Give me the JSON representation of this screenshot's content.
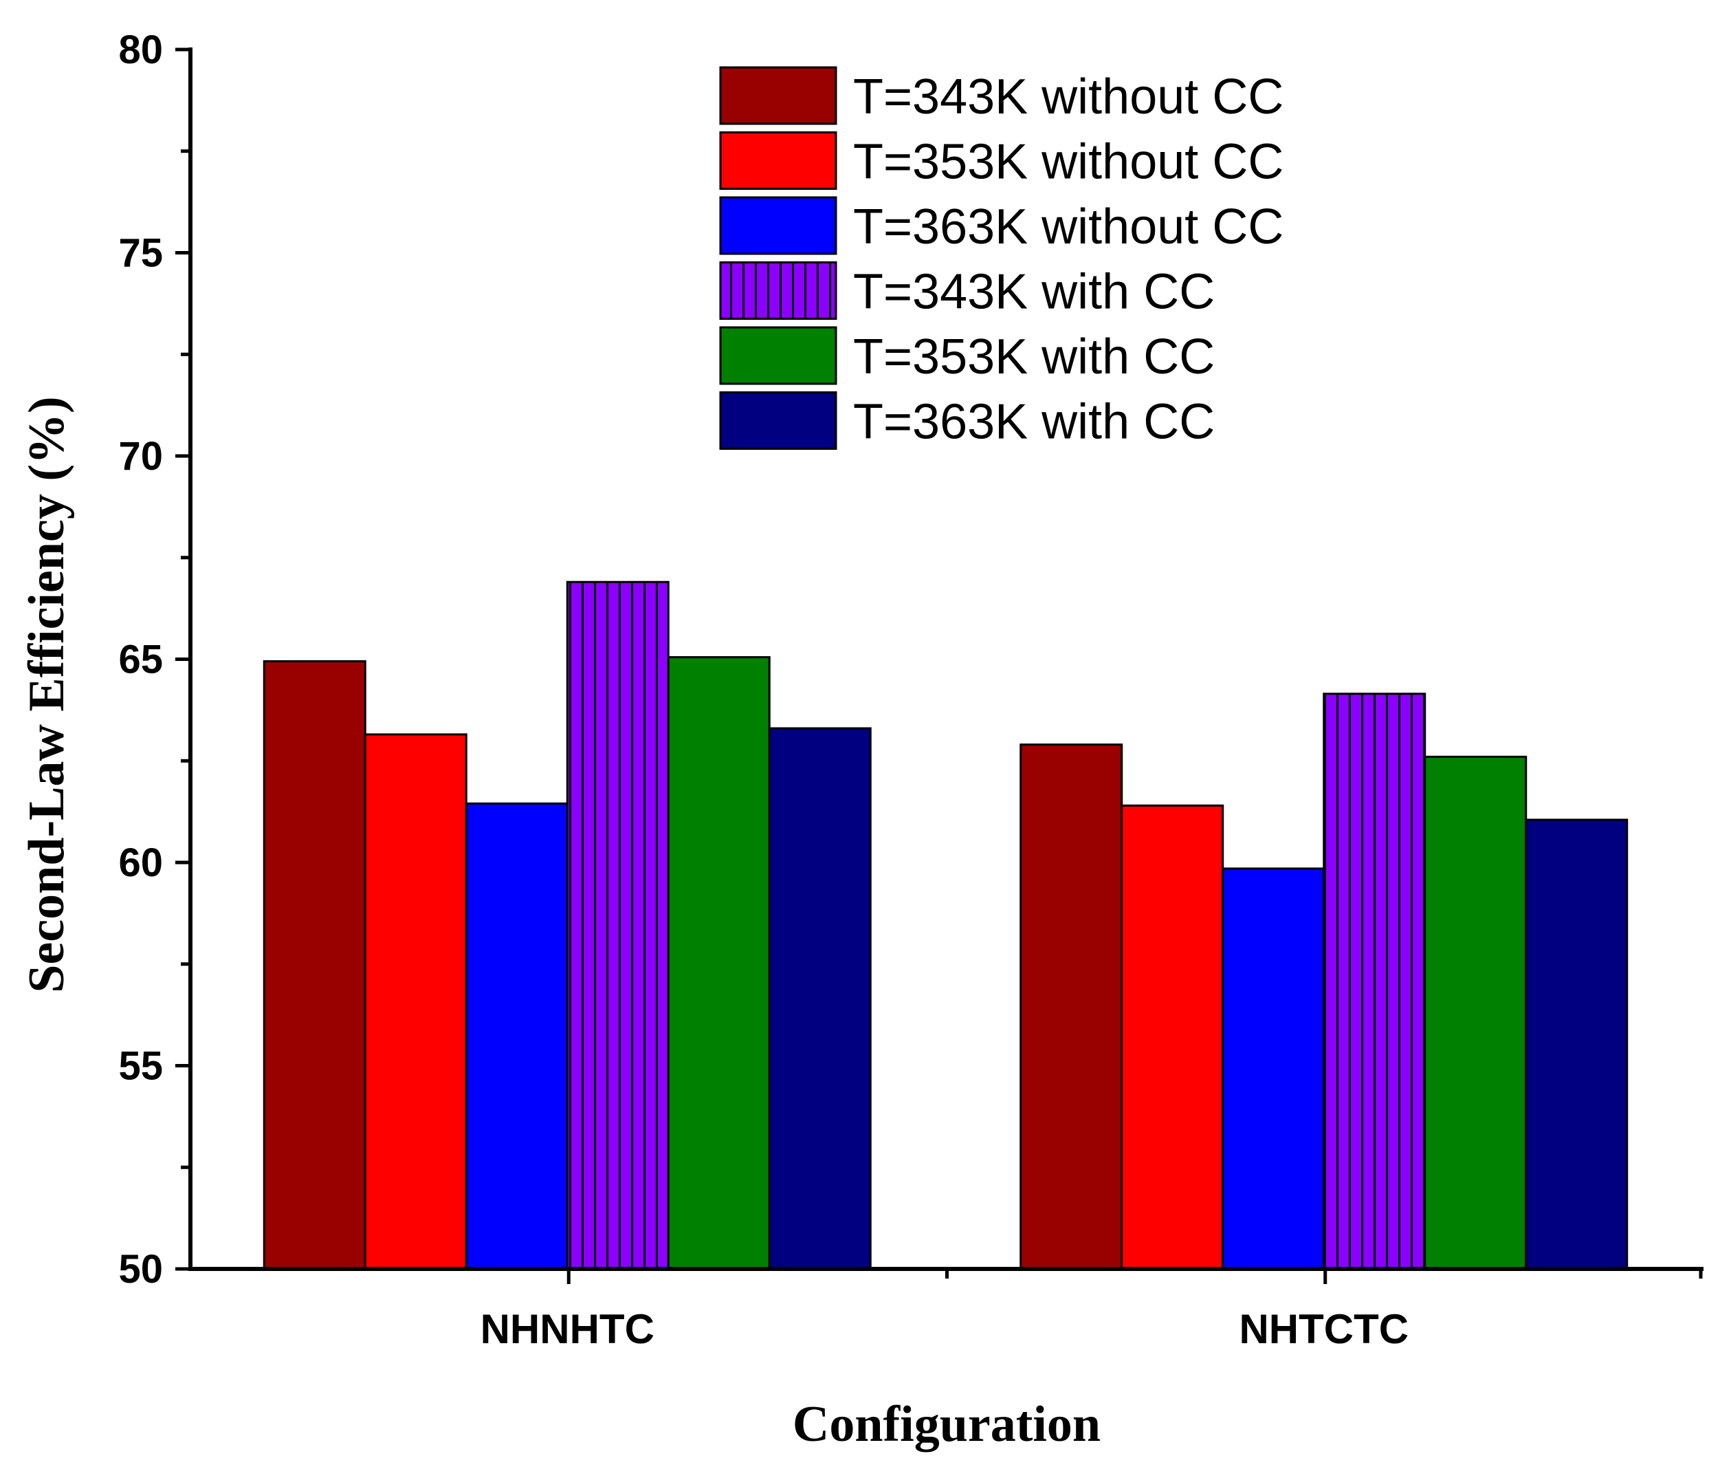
{
  "chart_data": {
    "type": "bar",
    "title": "",
    "xlabel": "Configuration",
    "ylabel": "Second-Law Efficiency (%)",
    "ylim": [
      50,
      80
    ],
    "yticks": [
      "50",
      "55",
      "60",
      "65",
      "70",
      "75",
      "80"
    ],
    "categories": [
      "NHNHTC",
      "NHTCTC"
    ],
    "legend_position": "top-center",
    "series": [
      {
        "name": "T=343K without CC",
        "values": [
          64.95,
          62.9
        ],
        "color": "#990000",
        "pattern": "solid"
      },
      {
        "name": "T=353K without CC",
        "values": [
          63.15,
          61.4
        ],
        "color": "#ff0000",
        "pattern": "solid"
      },
      {
        "name": "T=363K without CC",
        "values": [
          61.45,
          59.85
        ],
        "color": "#0000ff",
        "pattern": "solid"
      },
      {
        "name": "T=343K with CC",
        "values": [
          66.9,
          64.15
        ],
        "color": "#8b00ff",
        "pattern": "vertical-stripes"
      },
      {
        "name": "T=353K with CC",
        "values": [
          65.05,
          62.6
        ],
        "color": "#008000",
        "pattern": "solid"
      },
      {
        "name": "T=363K with CC",
        "values": [
          63.3,
          61.05
        ],
        "color": "#000080",
        "pattern": "solid"
      }
    ]
  }
}
